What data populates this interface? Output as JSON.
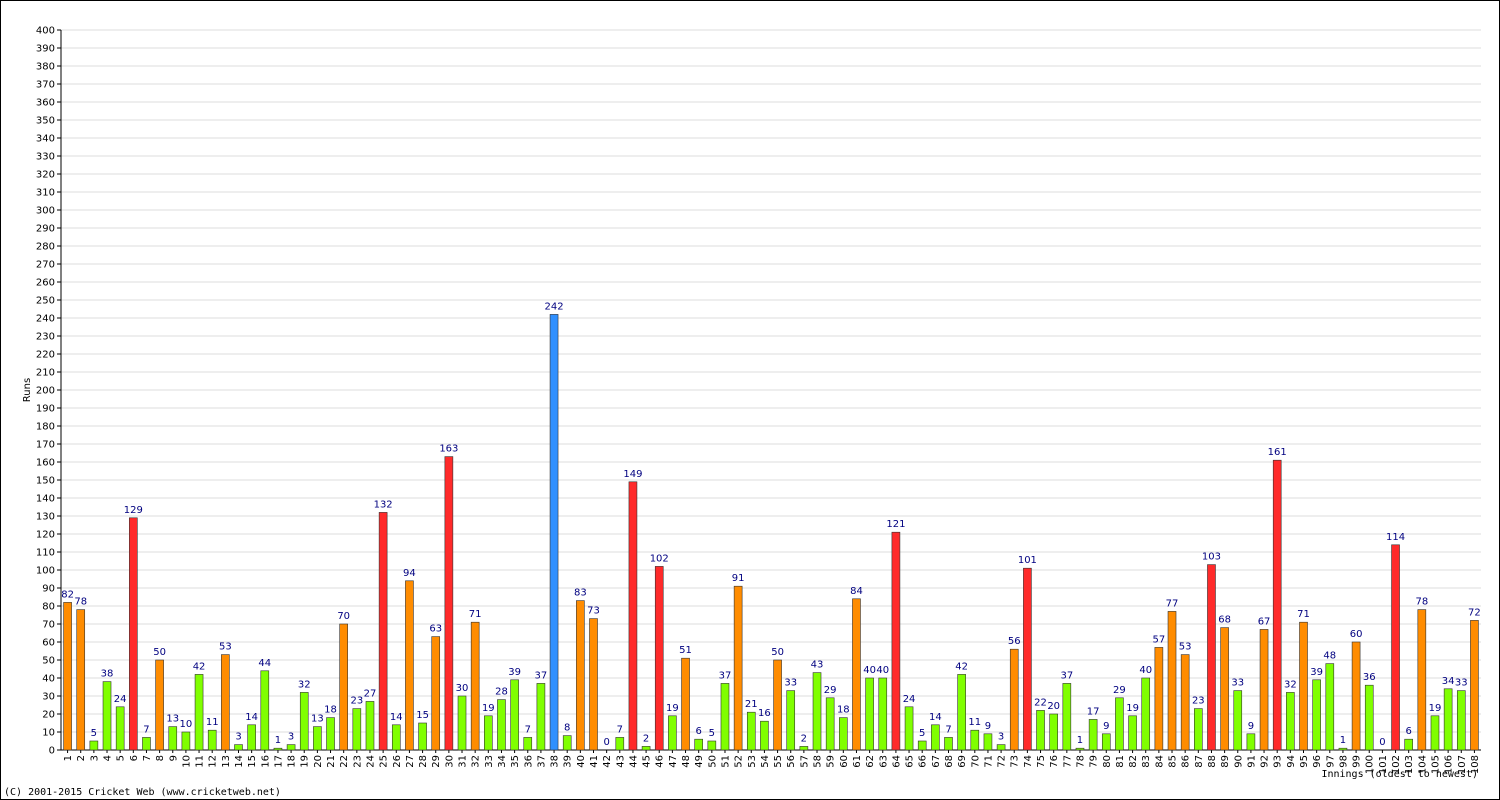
{
  "chart_data": {
    "type": "bar",
    "y_label": "Runs",
    "x_label": "Innings (oldest to newest)",
    "footer": "(C) 2001-2015 Cricket Web (www.cricketweb.net)",
    "categories": [
      "1",
      "2",
      "3",
      "4",
      "5",
      "6",
      "7",
      "8",
      "9",
      "10",
      "11",
      "12",
      "13",
      "14",
      "15",
      "16",
      "17",
      "18",
      "19",
      "20",
      "21",
      "22",
      "23",
      "24",
      "25",
      "26",
      "27",
      "28",
      "29",
      "30",
      "31",
      "32",
      "33",
      "34",
      "35",
      "36",
      "37",
      "38",
      "39",
      "40",
      "41",
      "42",
      "43",
      "44",
      "45",
      "46",
      "47",
      "48",
      "49",
      "50",
      "51",
      "52",
      "53",
      "54",
      "55",
      "56",
      "57",
      "58",
      "59",
      "60",
      "61",
      "62",
      "63",
      "64",
      "65",
      "66",
      "67",
      "68",
      "69",
      "70",
      "71",
      "72",
      "73",
      "74",
      "75",
      "76",
      "77",
      "78",
      "79",
      "80",
      "81",
      "82",
      "83",
      "84",
      "85",
      "86",
      "87",
      "88",
      "89",
      "90",
      "91",
      "92",
      "93",
      "94",
      "95",
      "96",
      "97",
      "98",
      "99",
      "100",
      "101",
      "102",
      "103",
      "104",
      "105",
      "106",
      "107",
      "108"
    ],
    "values": [
      82,
      78,
      5,
      38,
      24,
      129,
      7,
      50,
      13,
      10,
      42,
      11,
      53,
      3,
      14,
      44,
      1,
      3,
      32,
      13,
      18,
      70,
      23,
      27,
      132,
      14,
      94,
      15,
      63,
      163,
      30,
      71,
      19,
      28,
      39,
      7,
      37,
      242,
      8,
      83,
      73,
      0,
      7,
      149,
      2,
      102,
      19,
      51,
      6,
      5,
      37,
      91,
      21,
      16,
      50,
      33,
      2,
      43,
      29,
      18,
      84,
      40,
      40,
      121,
      24,
      5,
      14,
      7,
      42,
      11,
      9,
      3,
      56,
      101,
      22,
      20,
      37,
      1,
      17,
      9,
      29,
      19,
      40,
      57,
      77,
      53,
      23,
      103,
      68,
      33,
      9,
      67,
      161,
      32,
      71,
      39,
      48,
      1,
      60,
      36,
      0,
      114,
      6,
      78,
      19,
      34,
      33,
      72
    ],
    "colors": [
      "#ff8c00",
      "#ff8c00",
      "#80ff00",
      "#80ff00",
      "#80ff00",
      "#ff2a2a",
      "#80ff00",
      "#ff8c00",
      "#80ff00",
      "#80ff00",
      "#80ff00",
      "#80ff00",
      "#ff8c00",
      "#80ff00",
      "#80ff00",
      "#80ff00",
      "#80ff00",
      "#80ff00",
      "#80ff00",
      "#80ff00",
      "#80ff00",
      "#ff8c00",
      "#80ff00",
      "#80ff00",
      "#ff2a2a",
      "#80ff00",
      "#ff8c00",
      "#80ff00",
      "#ff8c00",
      "#ff2a2a",
      "#80ff00",
      "#ff8c00",
      "#80ff00",
      "#80ff00",
      "#80ff00",
      "#80ff00",
      "#80ff00",
      "#3090ff",
      "#80ff00",
      "#ff8c00",
      "#ff8c00",
      "#80ff00",
      "#80ff00",
      "#ff2a2a",
      "#80ff00",
      "#ff2a2a",
      "#80ff00",
      "#ff8c00",
      "#80ff00",
      "#80ff00",
      "#80ff00",
      "#ff8c00",
      "#80ff00",
      "#80ff00",
      "#ff8c00",
      "#80ff00",
      "#80ff00",
      "#80ff00",
      "#80ff00",
      "#80ff00",
      "#ff8c00",
      "#80ff00",
      "#80ff00",
      "#ff2a2a",
      "#80ff00",
      "#80ff00",
      "#80ff00",
      "#80ff00",
      "#80ff00",
      "#80ff00",
      "#80ff00",
      "#80ff00",
      "#ff8c00",
      "#ff2a2a",
      "#80ff00",
      "#80ff00",
      "#80ff00",
      "#80ff00",
      "#80ff00",
      "#80ff00",
      "#80ff00",
      "#80ff00",
      "#80ff00",
      "#ff8c00",
      "#ff8c00",
      "#ff8c00",
      "#80ff00",
      "#ff2a2a",
      "#ff8c00",
      "#80ff00",
      "#80ff00",
      "#ff8c00",
      "#ff2a2a",
      "#80ff00",
      "#ff8c00",
      "#80ff00",
      "#80ff00",
      "#80ff00",
      "#ff8c00",
      "#80ff00",
      "#80ff00",
      "#ff2a2a",
      "#80ff00",
      "#ff8c00",
      "#80ff00",
      "#80ff00",
      "#80ff00",
      "#ff8c00"
    ],
    "ylim": [
      0,
      400
    ],
    "yticks": [
      0,
      10,
      20,
      30,
      40,
      50,
      60,
      70,
      80,
      90,
      100,
      110,
      120,
      130,
      140,
      150,
      160,
      170,
      180,
      190,
      200,
      210,
      220,
      230,
      240,
      250,
      260,
      270,
      280,
      290,
      300,
      310,
      320,
      330,
      340,
      350,
      360,
      370,
      380,
      390,
      400
    ],
    "grid": true
  }
}
